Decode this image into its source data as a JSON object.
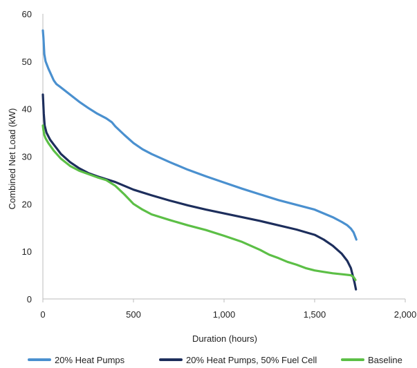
{
  "chart_data": {
    "type": "line",
    "title": "",
    "xlabel": "Duration (hours)",
    "ylabel": "Combined Net Load (kW)",
    "xlim": [
      0,
      2000
    ],
    "ylim": [
      0,
      60
    ],
    "xticks": [
      0,
      500,
      1000,
      1500,
      2000
    ],
    "xtick_labels": [
      "0",
      "500",
      "1,000",
      "1,500",
      "2,000"
    ],
    "yticks": [
      0,
      10,
      20,
      30,
      40,
      50,
      60
    ],
    "ytick_labels": [
      "0",
      "10",
      "20",
      "30",
      "40",
      "50",
      "60"
    ],
    "grid": false,
    "legend_position": "bottom",
    "series": [
      {
        "name": "20% Heat Pumps",
        "color": "#4a90cf",
        "x": [
          0,
          3,
          8,
          15,
          30,
          60,
          75,
          100,
          150,
          200,
          250,
          300,
          350,
          380,
          400,
          450,
          500,
          550,
          600,
          700,
          800,
          900,
          1000,
          1100,
          1200,
          1300,
          1400,
          1500,
          1550,
          1600,
          1650,
          1680,
          1700,
          1715,
          1725,
          1730
        ],
        "y": [
          56.5,
          55,
          51.5,
          50,
          48.5,
          46,
          45.2,
          44.5,
          43,
          41.5,
          40.2,
          39,
          38,
          37.2,
          36.3,
          34.5,
          32.8,
          31.5,
          30.5,
          28.8,
          27.2,
          25.8,
          24.5,
          23.2,
          22,
          20.8,
          19.8,
          18.8,
          18,
          17.2,
          16.2,
          15.5,
          14.8,
          14,
          13,
          12.5
        ]
      },
      {
        "name": "20% Heat Pumps, 50% Fuel Cell",
        "color": "#1d2e5c",
        "x": [
          0,
          2,
          5,
          10,
          20,
          40,
          60,
          80,
          100,
          150,
          200,
          250,
          300,
          350,
          400,
          450,
          500,
          600,
          700,
          800,
          900,
          1000,
          1100,
          1200,
          1300,
          1400,
          1500,
          1550,
          1600,
          1650,
          1680,
          1700,
          1710,
          1720,
          1725,
          1728
        ],
        "y": [
          43,
          41.5,
          39,
          36.5,
          35,
          33.5,
          32.5,
          31.5,
          30.5,
          28.8,
          27.5,
          26.5,
          25.8,
          25.2,
          24.6,
          23.8,
          23,
          21.8,
          20.7,
          19.7,
          18.8,
          18,
          17.2,
          16.4,
          15.5,
          14.6,
          13.5,
          12.5,
          11.2,
          9.5,
          8,
          6.5,
          5,
          3.5,
          2.5,
          2
        ]
      },
      {
        "name": "Baseline",
        "color": "#5cbf46",
        "x": [
          0,
          3,
          8,
          15,
          30,
          60,
          100,
          150,
          200,
          250,
          300,
          350,
          400,
          450,
          500,
          550,
          600,
          700,
          800,
          900,
          1000,
          1100,
          1200,
          1250,
          1300,
          1350,
          1400,
          1450,
          1500,
          1550,
          1600,
          1650,
          1700,
          1715,
          1725
        ],
        "y": [
          36.5,
          35.5,
          34.5,
          33.8,
          32.8,
          31.2,
          29.5,
          28,
          27,
          26.3,
          25.6,
          25,
          23.8,
          22,
          20,
          18.8,
          17.8,
          16.6,
          15.5,
          14.5,
          13.3,
          12,
          10.3,
          9.3,
          8.6,
          7.8,
          7.2,
          6.5,
          6,
          5.7,
          5.4,
          5.2,
          5,
          4.6,
          4
        ]
      }
    ]
  }
}
